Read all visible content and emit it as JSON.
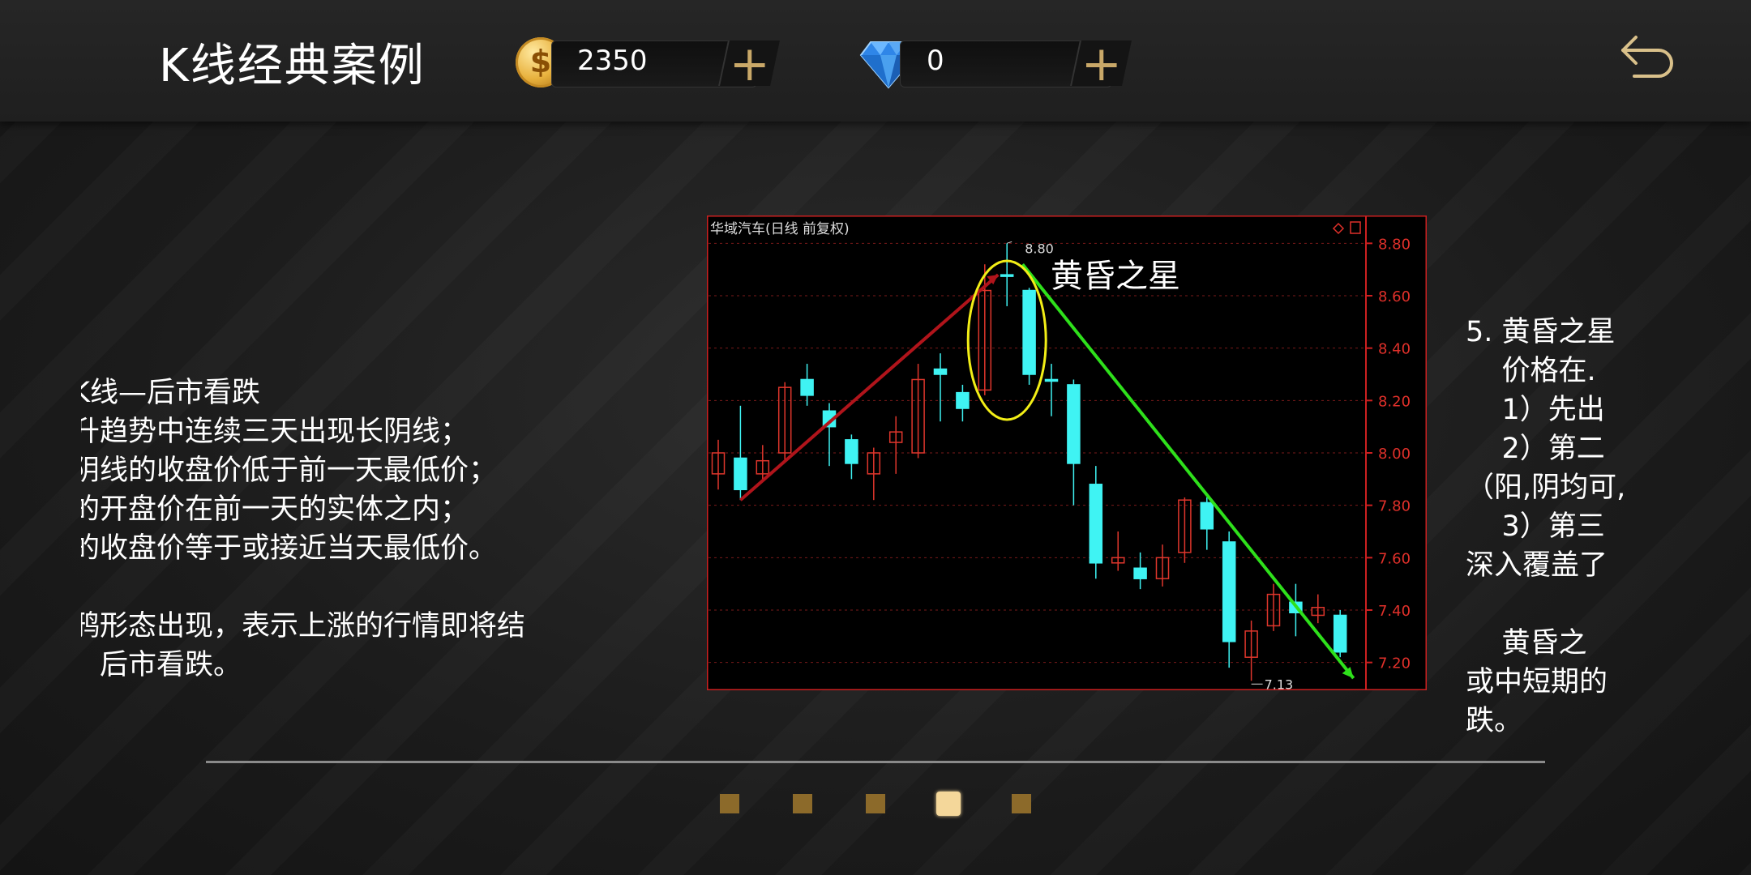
{
  "header": {
    "title": "K线经典案例",
    "coins": "2350",
    "diamonds": "0",
    "plus_symbol": "+"
  },
  "left_panel": {
    "lines": [
      "K线—后市看跌",
      "升趋势中连续三天出现长阴线；",
      "阴线的收盘价低于前一天最低价；",
      "的开盘价在前一天的实体之内；",
      "的收盘价等于或接近当天最低价。",
      "",
      "鸦形态出现，表示上涨的行情即将结",
      "，后市看跌。"
    ]
  },
  "right_panel": {
    "lines": [
      "5. 黄昏之星",
      "    价格在.",
      "    1）先出",
      "    2）第二",
      "（阳,阴均可,",
      "    3）第三",
      "深入覆盖了",
      "",
      "    黄昏之",
      "或中短期的",
      "跌。"
    ]
  },
  "chart": {
    "stock_label": "华域汽车(日线 前复权)",
    "annotation": "黄昏之星",
    "high_label": "8.80",
    "low_label": "7.13",
    "y_ticks": [
      "8.80",
      "8.60",
      "8.40",
      "8.20",
      "8.00",
      "7.80",
      "7.60",
      "7.40",
      "7.20"
    ]
  },
  "chart_data": {
    "type": "candlestick",
    "title": "华域汽车(日线 前复权)",
    "ylim": [
      7.1,
      8.9
    ],
    "y_ticks": [
      8.8,
      8.6,
      8.4,
      8.2,
      8.0,
      7.8,
      7.6,
      7.4,
      7.2
    ],
    "colors": {
      "up": "#e0362c",
      "down": "#3ff3f3",
      "grid": "#7a1a1a",
      "axis": "#cc2020"
    },
    "candles": [
      {
        "open": 7.92,
        "close": 8.0,
        "high": 8.05,
        "low": 7.86
      },
      {
        "open": 7.98,
        "close": 7.86,
        "high": 8.18,
        "low": 7.82
      },
      {
        "open": 7.92,
        "close": 7.97,
        "high": 8.03,
        "low": 7.89
      },
      {
        "open": 8.0,
        "close": 8.25,
        "high": 8.27,
        "low": 7.97
      },
      {
        "open": 8.28,
        "close": 8.22,
        "high": 8.34,
        "low": 8.18
      },
      {
        "open": 8.16,
        "close": 8.1,
        "high": 8.19,
        "low": 7.95
      },
      {
        "open": 8.05,
        "close": 7.96,
        "high": 8.07,
        "low": 7.9
      },
      {
        "open": 7.92,
        "close": 8.0,
        "high": 8.02,
        "low": 7.82
      },
      {
        "open": 8.04,
        "close": 8.08,
        "high": 8.14,
        "low": 7.92
      },
      {
        "open": 8.0,
        "close": 8.28,
        "high": 8.34,
        "low": 7.98
      },
      {
        "open": 8.32,
        "close": 8.3,
        "high": 8.38,
        "low": 8.12
      },
      {
        "open": 8.23,
        "close": 8.17,
        "high": 8.26,
        "low": 8.12
      },
      {
        "open": 8.24,
        "close": 8.62,
        "high": 8.72,
        "low": 8.22
      },
      {
        "open": 8.68,
        "close": 8.68,
        "high": 8.8,
        "low": 8.56
      },
      {
        "open": 8.62,
        "close": 8.3,
        "high": 8.63,
        "low": 8.26
      },
      {
        "open": 8.28,
        "close": 8.28,
        "high": 8.34,
        "low": 8.14
      },
      {
        "open": 8.26,
        "close": 7.96,
        "high": 8.28,
        "low": 7.8
      },
      {
        "open": 7.88,
        "close": 7.58,
        "high": 7.95,
        "low": 7.52
      },
      {
        "open": 7.58,
        "close": 7.6,
        "high": 7.7,
        "low": 7.55
      },
      {
        "open": 7.56,
        "close": 7.52,
        "high": 7.62,
        "low": 7.48
      },
      {
        "open": 7.52,
        "close": 7.6,
        "high": 7.65,
        "low": 7.49
      },
      {
        "open": 7.62,
        "close": 7.82,
        "high": 7.83,
        "low": 7.58
      },
      {
        "open": 7.81,
        "close": 7.71,
        "high": 7.83,
        "low": 7.63
      },
      {
        "open": 7.66,
        "close": 7.28,
        "high": 7.7,
        "low": 7.18
      },
      {
        "open": 7.22,
        "close": 7.32,
        "high": 7.36,
        "low": 7.13
      },
      {
        "open": 7.34,
        "close": 7.46,
        "high": 7.5,
        "low": 7.32
      },
      {
        "open": 7.43,
        "close": 7.39,
        "high": 7.5,
        "low": 7.3
      },
      {
        "open": 7.38,
        "close": 7.41,
        "high": 7.46,
        "low": 7.35
      },
      {
        "open": 7.38,
        "close": 7.24,
        "high": 7.4,
        "low": 7.22
      }
    ]
  },
  "pager": {
    "pages": 5,
    "current": 4
  }
}
